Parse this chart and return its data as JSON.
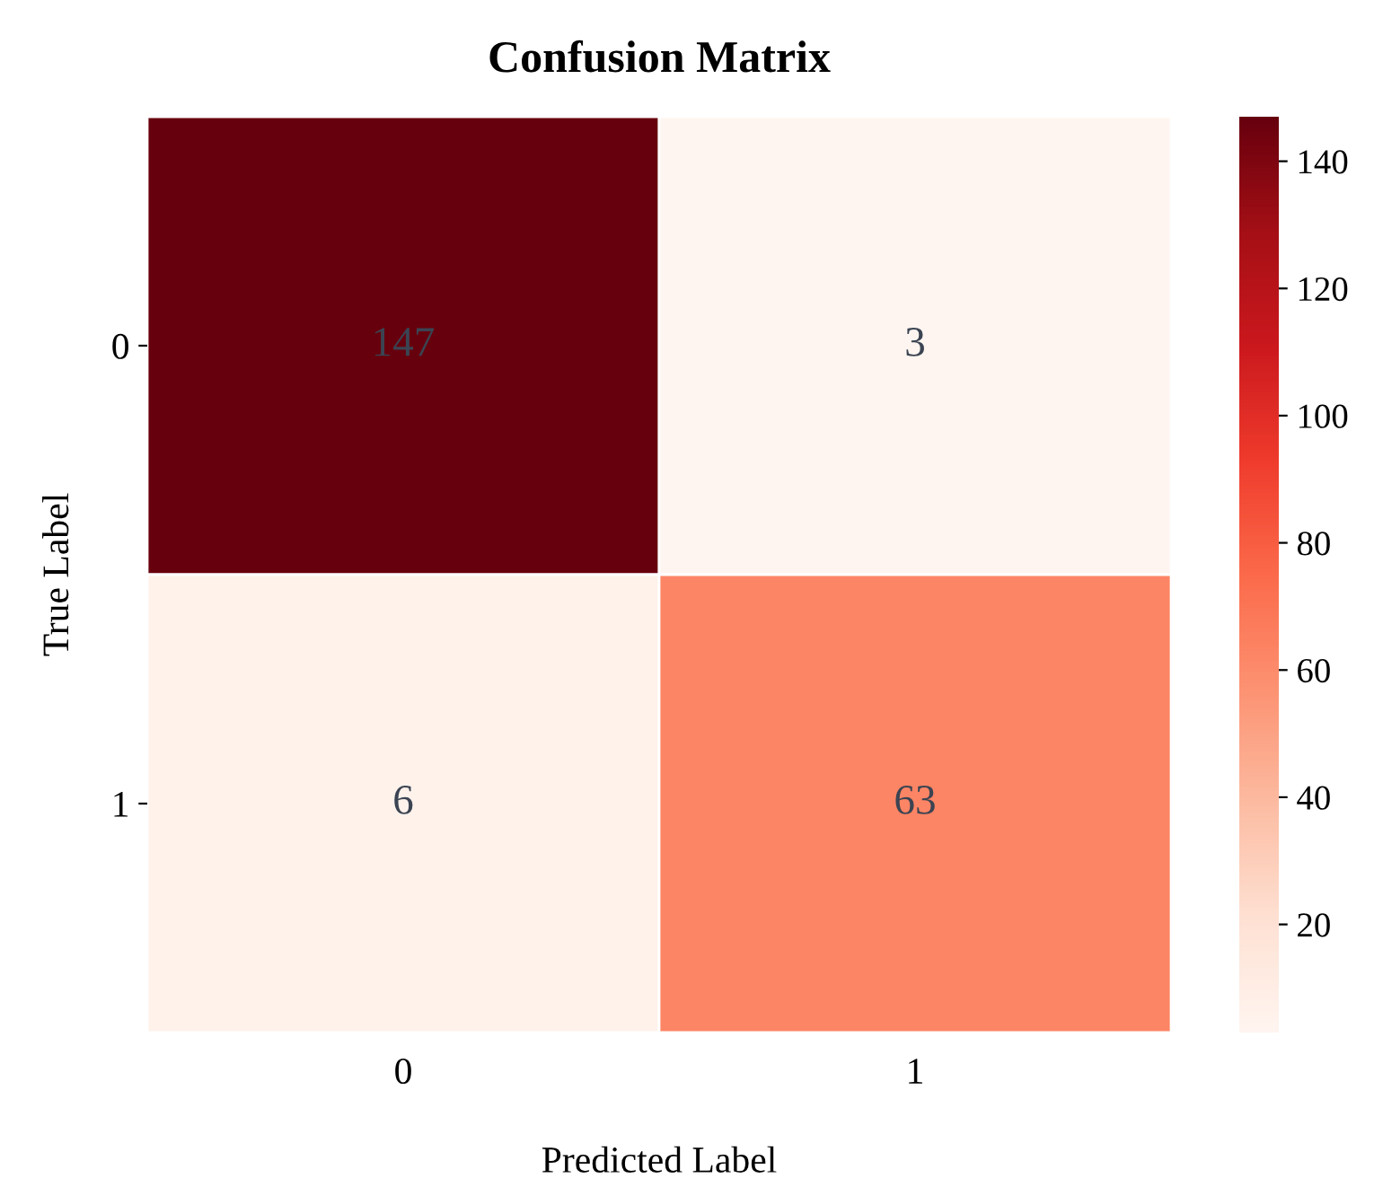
{
  "chart_data": {
    "type": "heatmap",
    "title": "Confusion Matrix",
    "xlabel": "Predicted Label",
    "ylabel": "True Label",
    "categories": [
      "0",
      "1"
    ],
    "y_categories": [
      "0",
      "1"
    ],
    "cells": [
      [
        147,
        3
      ],
      [
        6,
        63
      ]
    ],
    "data_labels": true,
    "clim": [
      3,
      147
    ],
    "cticks": [
      20,
      40,
      60,
      80,
      100,
      120,
      140
    ]
  }
}
